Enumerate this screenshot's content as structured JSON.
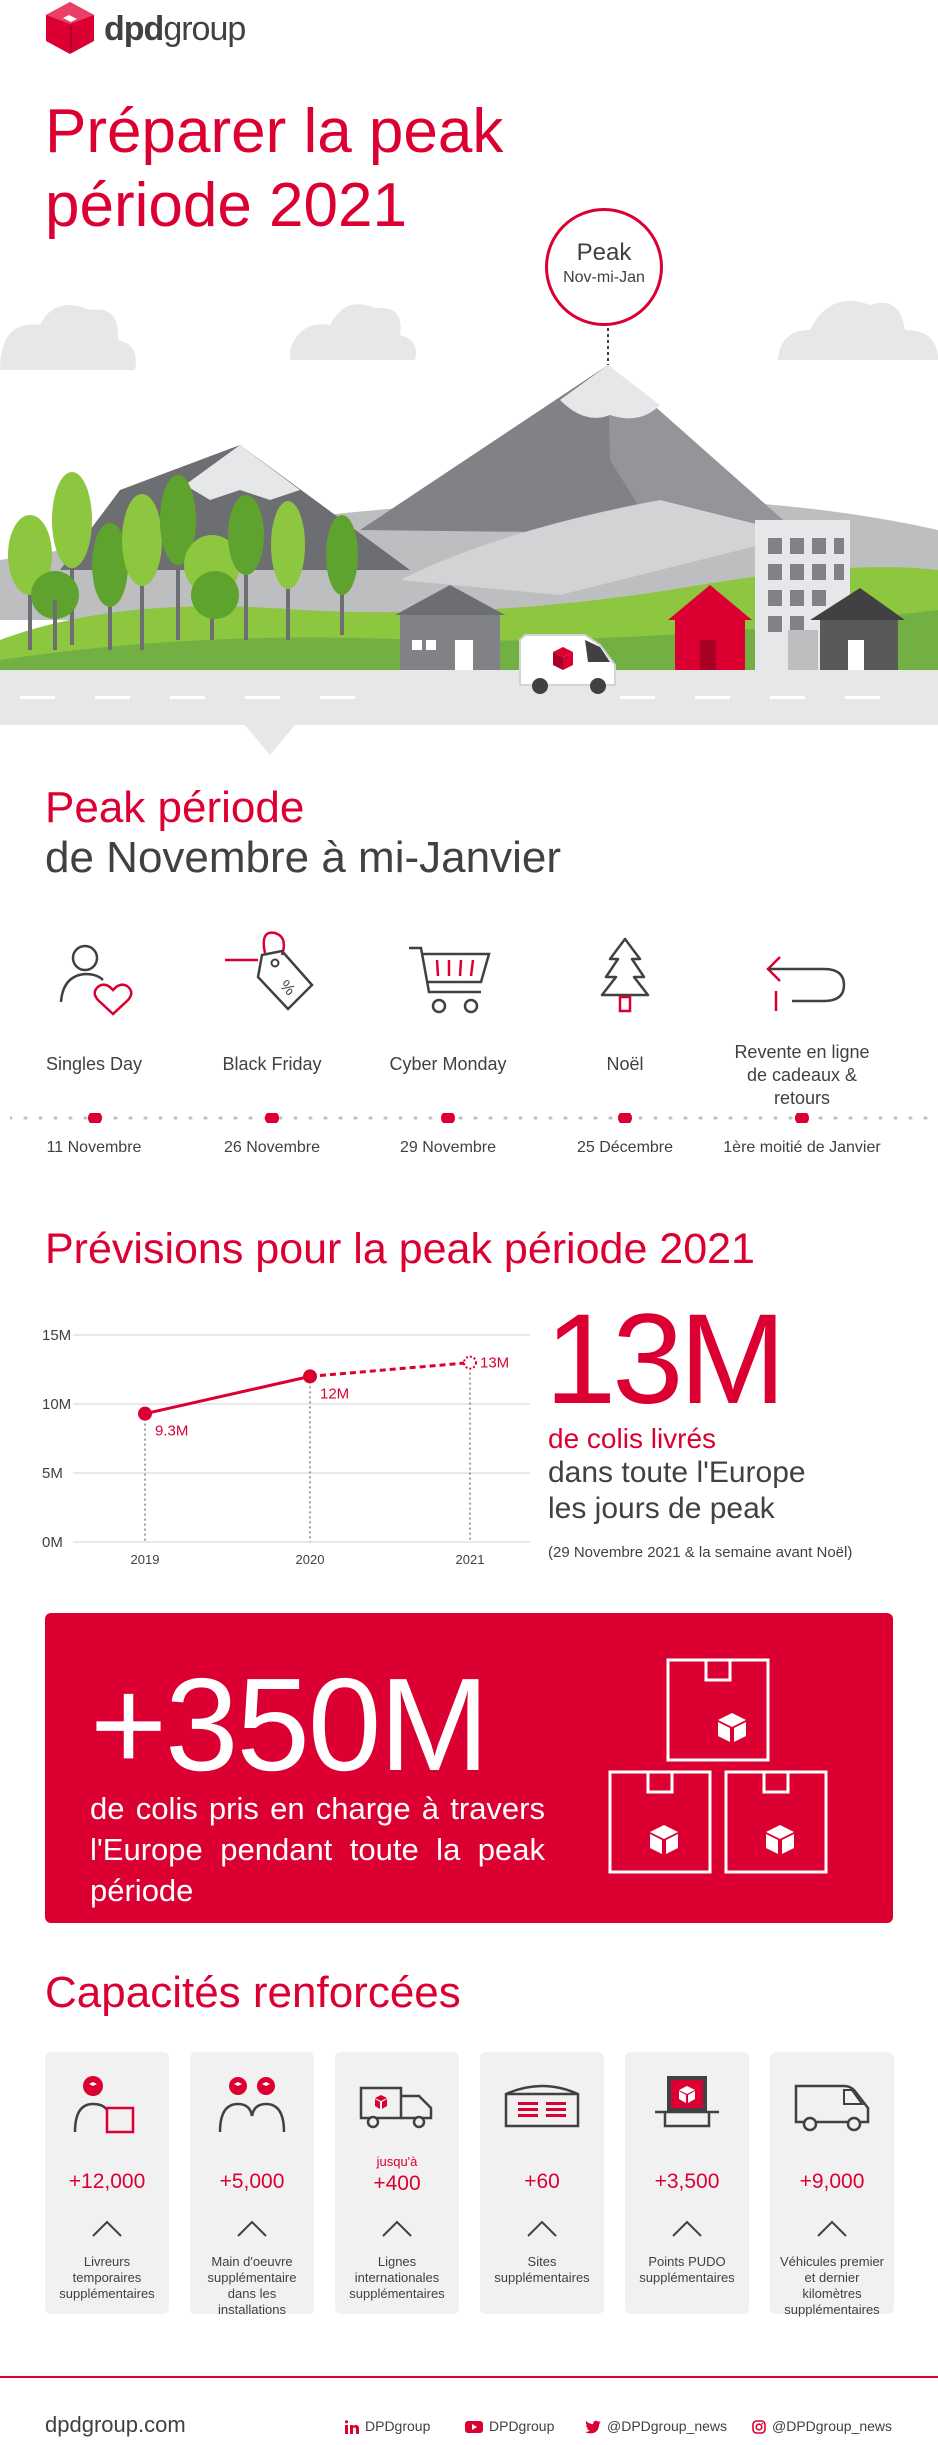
{
  "brand": {
    "logo_bold": "dpd",
    "logo_light": "group",
    "red": "#dc0032",
    "grey": "#414042"
  },
  "title": {
    "line1": "Préparer la peak",
    "line2": "période 2021"
  },
  "peak_bubble": {
    "title": "Peak",
    "subtitle": "Nov-mi-Jan"
  },
  "period": {
    "title": "Peak période",
    "subtitle": "de Novembre à mi-Janvier"
  },
  "events": [
    {
      "icon": "heart-person-icon",
      "label": "Singles Day",
      "date": "11 Novembre"
    },
    {
      "icon": "price-tag-icon",
      "label": "Black Friday",
      "date": "26 Novembre"
    },
    {
      "icon": "shopping-cart-icon",
      "label": "Cyber Monday",
      "date": "29 Novembre"
    },
    {
      "icon": "christmas-tree-icon",
      "label": "Noël",
      "date": "25 Décembre"
    },
    {
      "icon": "return-arrow-icon",
      "label": "Revente en ligne de cadeaux & retours",
      "date": "1ère moitié de Janvier"
    }
  ],
  "forecast": {
    "title": "Prévisions pour la peak période 2021",
    "big_value": "13M",
    "line_a": "de colis livrés",
    "line_b": "dans toute l'Europe",
    "line_c": "les jours de peak",
    "note": "(29 Novembre 2021 & la semaine avant Noël)"
  },
  "chart_data": {
    "type": "line",
    "x": [
      "2019",
      "2020",
      "2021"
    ],
    "series": [
      {
        "values": [
          9.3,
          12,
          13
        ]
      }
    ],
    "point_labels": [
      "9.3M",
      "12M",
      "13M"
    ],
    "y_ticks": [
      "0M",
      "5M",
      "10M",
      "15M"
    ],
    "ylim": [
      0,
      15
    ],
    "grid": true,
    "projected_last_segment": true
  },
  "handled": {
    "big_value": "+350M",
    "description": "de colis pris en charge à travers l'Europe pendant toute la peak période"
  },
  "capacities": {
    "title": "Capacités renforcées",
    "cards": [
      {
        "icon": "delivery-driver-icon",
        "prefix": "",
        "value": "+12,000",
        "label": "Livreurs temporaires supplémentaires"
      },
      {
        "icon": "workers-icon",
        "prefix": "",
        "value": "+5,000",
        "label": "Main d'oeuvre supplémentaire dans les installations"
      },
      {
        "icon": "truck-icon",
        "prefix": "jusqu'à",
        "value": "+400",
        "label": "Lignes internationales supplémentaires"
      },
      {
        "icon": "warehouse-icon",
        "prefix": "",
        "value": "+60",
        "label": "Sites supplémentaires"
      },
      {
        "icon": "pickup-point-icon",
        "prefix": "",
        "value": "+3,500",
        "label": "Points PUDO supplémentaires"
      },
      {
        "icon": "van-icon",
        "prefix": "",
        "value": "+9,000",
        "label": "Véhicules premier et dernier kilomètres supplémentaires"
      }
    ]
  },
  "footer": {
    "url": "dpdgroup.com",
    "social": [
      {
        "icon": "linkedin-icon",
        "handle": "DPDgroup"
      },
      {
        "icon": "youtube-icon",
        "handle": "DPDgroup"
      },
      {
        "icon": "twitter-icon",
        "handle": "@DPDgroup_news"
      },
      {
        "icon": "instagram-icon",
        "handle": "@DPDgroup_news"
      }
    ]
  }
}
